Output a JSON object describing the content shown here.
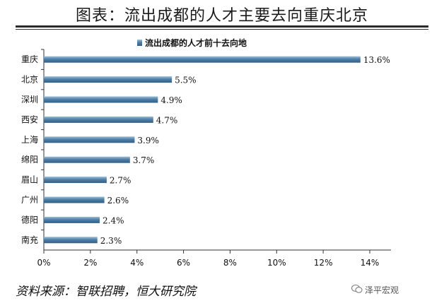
{
  "title": "图表：流出成都的人才主要去向重庆北京",
  "source": "资料来源：智联招聘，恒大研究院",
  "watermark": "泽平宏观",
  "chart_data": {
    "type": "bar",
    "orientation": "horizontal",
    "title": "",
    "legend": {
      "label": "流出成都的人才前十去向地",
      "position": "top"
    },
    "categories": [
      "重庆",
      "北京",
      "深圳",
      "西安",
      "上海",
      "绵阳",
      "眉山",
      "广州",
      "德阳",
      "南充"
    ],
    "values": [
      13.6,
      5.5,
      4.9,
      4.7,
      3.9,
      3.7,
      2.7,
      2.6,
      2.4,
      2.3
    ],
    "value_labels": [
      "13.6%",
      "5.5%",
      "4.9%",
      "4.7%",
      "3.9%",
      "3.7%",
      "2.7%",
      "2.6%",
      "2.4%",
      "2.3%"
    ],
    "xlim": [
      0,
      14
    ],
    "x_ticks": [
      0,
      2,
      4,
      6,
      8,
      10,
      12,
      14
    ],
    "x_tick_labels": [
      "0%",
      "2%",
      "4%",
      "6%",
      "8%",
      "10%",
      "12%",
      "14%"
    ],
    "grid": false,
    "bar_color": "#4f7fa6"
  }
}
